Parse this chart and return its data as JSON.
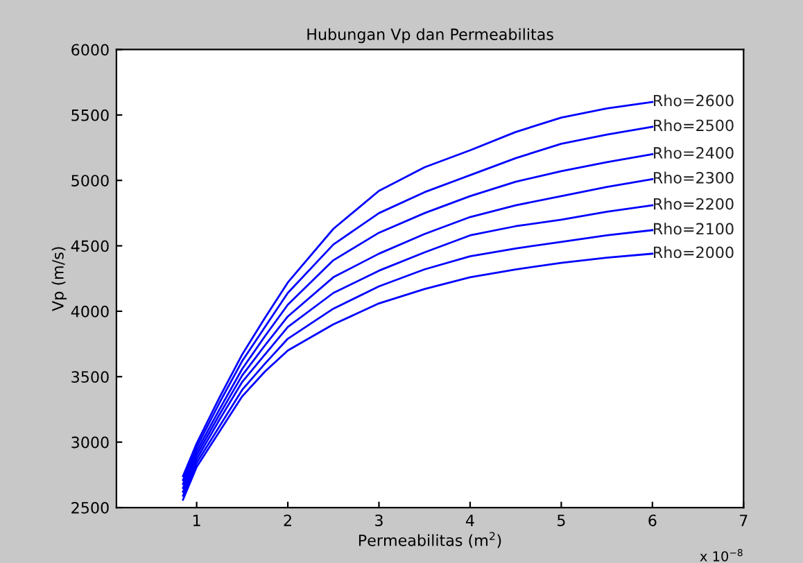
{
  "chart_data": {
    "type": "line",
    "title": "Hubungan Vp dan Permeabilitas",
    "xlabel": "Permeabilitas (m$^{2}$)",
    "ylabel": "Vp (m/s)",
    "x": [
      0.85,
      1,
      1.25,
      1.5,
      1.75,
      2,
      2.5,
      3,
      3.5,
      4,
      4.5,
      5,
      5.5,
      6
    ],
    "series": [
      {
        "name": "Rho=2600",
        "color": "#0000ff",
        "values": [
          2740,
          2990,
          3340,
          3670,
          3950,
          4220,
          4630,
          4920,
          5100,
          5230,
          5370,
          5480,
          5550,
          5600
        ]
      },
      {
        "name": "Rho=2500",
        "color": "#0000ff",
        "values": [
          2710,
          2960,
          3300,
          3620,
          3880,
          4140,
          4510,
          4750,
          4910,
          5040,
          5170,
          5280,
          5350,
          5410
        ]
      },
      {
        "name": "Rho=2400",
        "color": "#0000ff",
        "values": [
          2680,
          2930,
          3250,
          3560,
          3810,
          4050,
          4390,
          4600,
          4750,
          4880,
          4990,
          5070,
          5140,
          5200
        ]
      },
      {
        "name": "Rho=2300",
        "color": "#0000ff",
        "values": [
          2650,
          2900,
          3210,
          3510,
          3740,
          3960,
          4260,
          4440,
          4590,
          4720,
          4810,
          4880,
          4950,
          5010
        ]
      },
      {
        "name": "Rho=2200",
        "color": "#0000ff",
        "values": [
          2620,
          2870,
          3170,
          3460,
          3670,
          3880,
          4140,
          4310,
          4450,
          4580,
          4650,
          4700,
          4760,
          4810
        ]
      },
      {
        "name": "Rho=2100",
        "color": "#0000ff",
        "values": [
          2590,
          2840,
          3120,
          3400,
          3600,
          3790,
          4020,
          4190,
          4320,
          4420,
          4480,
          4530,
          4580,
          4620
        ]
      },
      {
        "name": "Rho=2000",
        "color": "#0000ff",
        "values": [
          2560,
          2810,
          3080,
          3350,
          3540,
          3700,
          3900,
          4060,
          4170,
          4260,
          4320,
          4370,
          4410,
          4440
        ]
      }
    ],
    "xlim": [
      0.12,
      7
    ],
    "xticks": [
      1,
      2,
      3,
      4,
      5,
      6,
      7
    ],
    "ylim": [
      2500,
      6000
    ],
    "yticks": [
      2500,
      3000,
      3500,
      4000,
      4500,
      5000,
      5500,
      6000
    ],
    "annotations": [
      "x 10$^{−8}$"
    ],
    "grid": false,
    "legend": false,
    "marker": "none",
    "line_style": "solid"
  }
}
